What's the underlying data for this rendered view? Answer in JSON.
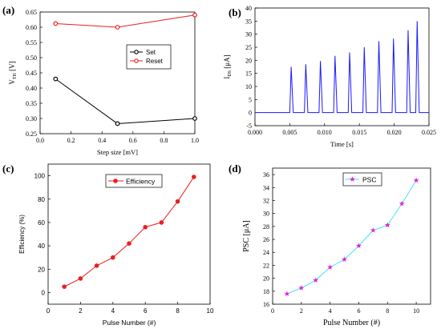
{
  "chart_data": [
    {
      "panel_label": "(a)",
      "type": "line",
      "xlabel": "Step size [mV]",
      "ylabel": "V",
      "ylabel_sub": "TH",
      "ylabel_unit": "[V]",
      "xlim": [
        0.0,
        1.0
      ],
      "ylim": [
        0.25,
        0.65
      ],
      "xticks": [
        "0.0",
        "0.2",
        "0.4",
        "0.6",
        "0.8",
        "1.0"
      ],
      "yticks": [
        "0.25",
        "0.30",
        "0.35",
        "0.40",
        "0.45",
        "0.50",
        "0.55",
        "0.60",
        "0.65"
      ],
      "legend_position": "center-right",
      "series": [
        {
          "name": "Set",
          "color": "#000000",
          "x": [
            0.1,
            0.5,
            1.0
          ],
          "values": [
            0.43,
            0.283,
            0.3
          ]
        },
        {
          "name": "Reset",
          "color": "#e8201e",
          "x": [
            0.1,
            0.5,
            1.0
          ],
          "values": [
            0.612,
            0.6,
            0.64
          ]
        }
      ]
    },
    {
      "panel_label": "(b)",
      "type": "line",
      "xlabel": "Time [s]",
      "ylabel": "I",
      "ylabel_sub": "DS",
      "ylabel_unit": "[μA]",
      "xlim": [
        0.0,
        0.025
      ],
      "ylim": [
        -5,
        40
      ],
      "xticks": [
        "0.000",
        "0.005",
        "0.010",
        "0.015",
        "0.020",
        "0.025"
      ],
      "yticks": [
        "-5",
        "0",
        "5",
        "10",
        "15",
        "20",
        "25",
        "30",
        "35",
        "40"
      ],
      "color": "#1a1aff",
      "pulse_times": [
        0.0052,
        0.0073,
        0.0094,
        0.0115,
        0.0136,
        0.0157,
        0.0178,
        0.0199,
        0.022,
        0.0233
      ],
      "pulse_peaks": [
        17.5,
        18.5,
        19.7,
        21.7,
        23.0,
        25.0,
        27.3,
        28.3,
        31.5,
        35.0
      ]
    },
    {
      "panel_label": "(c)",
      "type": "line",
      "xlabel": "Pulse Number (#)",
      "ylabel": "Efficiency (%)",
      "xlim": [
        0,
        10
      ],
      "ylim": [
        -10,
        110
      ],
      "xticks": [
        "0",
        "2",
        "4",
        "6",
        "8",
        "10"
      ],
      "yticks": [
        "0",
        "20",
        "40",
        "60",
        "80",
        "100"
      ],
      "legend_position": "top-center",
      "series": [
        {
          "name": "Efficiency",
          "color": "#e8201e",
          "x": [
            1,
            2,
            3,
            4,
            5,
            6,
            7,
            8,
            9
          ],
          "values": [
            5,
            12,
            23,
            30,
            42,
            56,
            60,
            78,
            99
          ]
        }
      ]
    },
    {
      "panel_label": "(d)",
      "type": "line",
      "xlabel": "Pulse Number (#)",
      "ylabel": "PSC [μA]",
      "xlim": [
        0,
        11
      ],
      "ylim": [
        16,
        37
      ],
      "xticks": [
        "0",
        "2",
        "4",
        "6",
        "8",
        "10"
      ],
      "yticks": [
        "16",
        "18",
        "20",
        "22",
        "24",
        "26",
        "28",
        "30",
        "32",
        "34",
        "36"
      ],
      "legend_position": "top-center",
      "series": [
        {
          "name": "PSC",
          "color": "#46e1f0",
          "marker_color": "#e020e0",
          "x": [
            1,
            2,
            3,
            4,
            5,
            6,
            7,
            8,
            9,
            10
          ],
          "values": [
            17.6,
            18.5,
            19.7,
            21.7,
            22.9,
            25.0,
            27.4,
            28.2,
            31.5,
            35.1
          ]
        }
      ]
    }
  ]
}
